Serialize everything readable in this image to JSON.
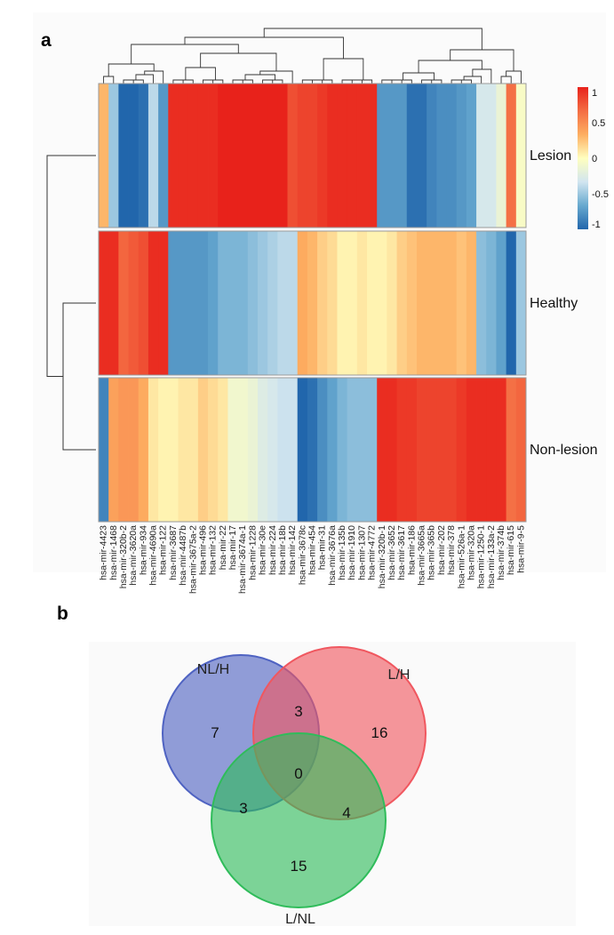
{
  "chart_data": [
    {
      "type": "heatmap",
      "panel_label": "a",
      "rows": [
        "Lesion",
        "Healthy",
        "Non-lesion"
      ],
      "columns": [
        "hsa-mir-4423",
        "hsa-mir-1468",
        "hsa-mir-320b-2",
        "hsa-mir-3620a",
        "hsa-mir-934",
        "hsa-mir-4690a",
        "hsa-mir-122",
        "hsa-mir-3687",
        "hsa-mir-4487b",
        "hsa-mir-3675a-2",
        "hsa-mir-496",
        "hsa-mir-132",
        "hsa-mir-22",
        "hsa-mir-17",
        "hsa-mir-3674a-1",
        "hsa-mir-1228",
        "hsa-mir-30e",
        "hsa-mir-224",
        "hsa-mir-18b",
        "hsa-mir-142",
        "hsa-mir-3678c",
        "hsa-mir-454",
        "hsa-mir-31",
        "hsa-mir-3676a",
        "hsa-mir-135b",
        "hsa-mir-1910",
        "hsa-mir-1307",
        "hsa-mir-4772",
        "hsa-mir-320b-1",
        "hsa-mir-3652",
        "hsa-mir-3617",
        "hsa-mir-186",
        "hsa-mir-3665a",
        "hsa-mir-365b",
        "hsa-mir-202",
        "hsa-mir-378",
        "hsa-mir-526a-1",
        "hsa-mir-320a",
        "hsa-mir-1250-1",
        "hsa-mir-133a-2",
        "hsa-mir-374b",
        "hsa-mir-615",
        "hsa-mir-9-5"
      ],
      "values": [
        [
          0.3,
          -0.5,
          -1.0,
          -1.0,
          -0.95,
          -0.4,
          -0.75,
          0.95,
          0.95,
          0.95,
          0.95,
          0.95,
          1.0,
          1.0,
          1.0,
          1.0,
          1.0,
          1.0,
          1.0,
          0.8,
          0.85,
          0.85,
          0.9,
          0.95,
          0.95,
          0.95,
          0.95,
          0.95,
          -0.75,
          -0.75,
          -0.75,
          -0.95,
          -0.95,
          -0.85,
          -0.8,
          -0.8,
          -0.75,
          -0.7,
          -0.3,
          -0.3,
          -0.15,
          0.65,
          -0.05
        ],
        [
          0.95,
          0.95,
          0.7,
          0.75,
          0.8,
          0.95,
          0.95,
          -0.75,
          -0.75,
          -0.75,
          -0.75,
          -0.7,
          -0.6,
          -0.6,
          -0.6,
          -0.55,
          -0.5,
          -0.45,
          -0.4,
          -0.4,
          0.35,
          0.3,
          0.2,
          0.15,
          0.05,
          0.05,
          0.1,
          0.05,
          0.05,
          0.1,
          0.2,
          0.25,
          0.3,
          0.3,
          0.3,
          0.3,
          0.25,
          0.3,
          -0.55,
          -0.6,
          -0.7,
          -1.0,
          -0.5
        ],
        [
          -0.85,
          0.4,
          0.45,
          0.45,
          0.35,
          0.1,
          0.05,
          0.05,
          0.1,
          0.1,
          0.2,
          0.15,
          0.1,
          -0.1,
          -0.1,
          -0.15,
          -0.25,
          -0.3,
          -0.35,
          -0.35,
          -1.0,
          -0.95,
          -0.8,
          -0.7,
          -0.6,
          -0.55,
          -0.55,
          -0.55,
          0.95,
          0.95,
          0.9,
          0.9,
          0.85,
          0.85,
          0.85,
          0.85,
          0.9,
          0.95,
          0.95,
          0.95,
          0.95,
          0.65,
          0.7
        ]
      ],
      "color_scale": {
        "ticks": [
          1,
          0.5,
          0,
          -0.5,
          -1
        ],
        "tick_labels": [
          "1",
          "0.5",
          "0",
          "-0.5",
          "-1"
        ],
        "range": [
          -1,
          1
        ],
        "colors": [
          "#2166ac",
          "#67a9cf",
          "#d1e5f0",
          "#ffffbf",
          "#fdae61",
          "#f46d43",
          "#e8221b"
        ]
      }
    },
    {
      "type": "venn",
      "panel_label": "b",
      "sets": [
        {
          "name": "NL/H",
          "color": "#4f63c2"
        },
        {
          "name": "L/H",
          "color": "#f0575f"
        },
        {
          "name": "L/NL",
          "color": "#2fbc5a"
        }
      ],
      "regions": {
        "NL/H only": 7,
        "L/H only": 16,
        "L/NL only": 15,
        "NL/H & L/H": 3,
        "NL/H & L/NL": 3,
        "L/H & L/NL": 4,
        "all three": 0
      }
    }
  ]
}
